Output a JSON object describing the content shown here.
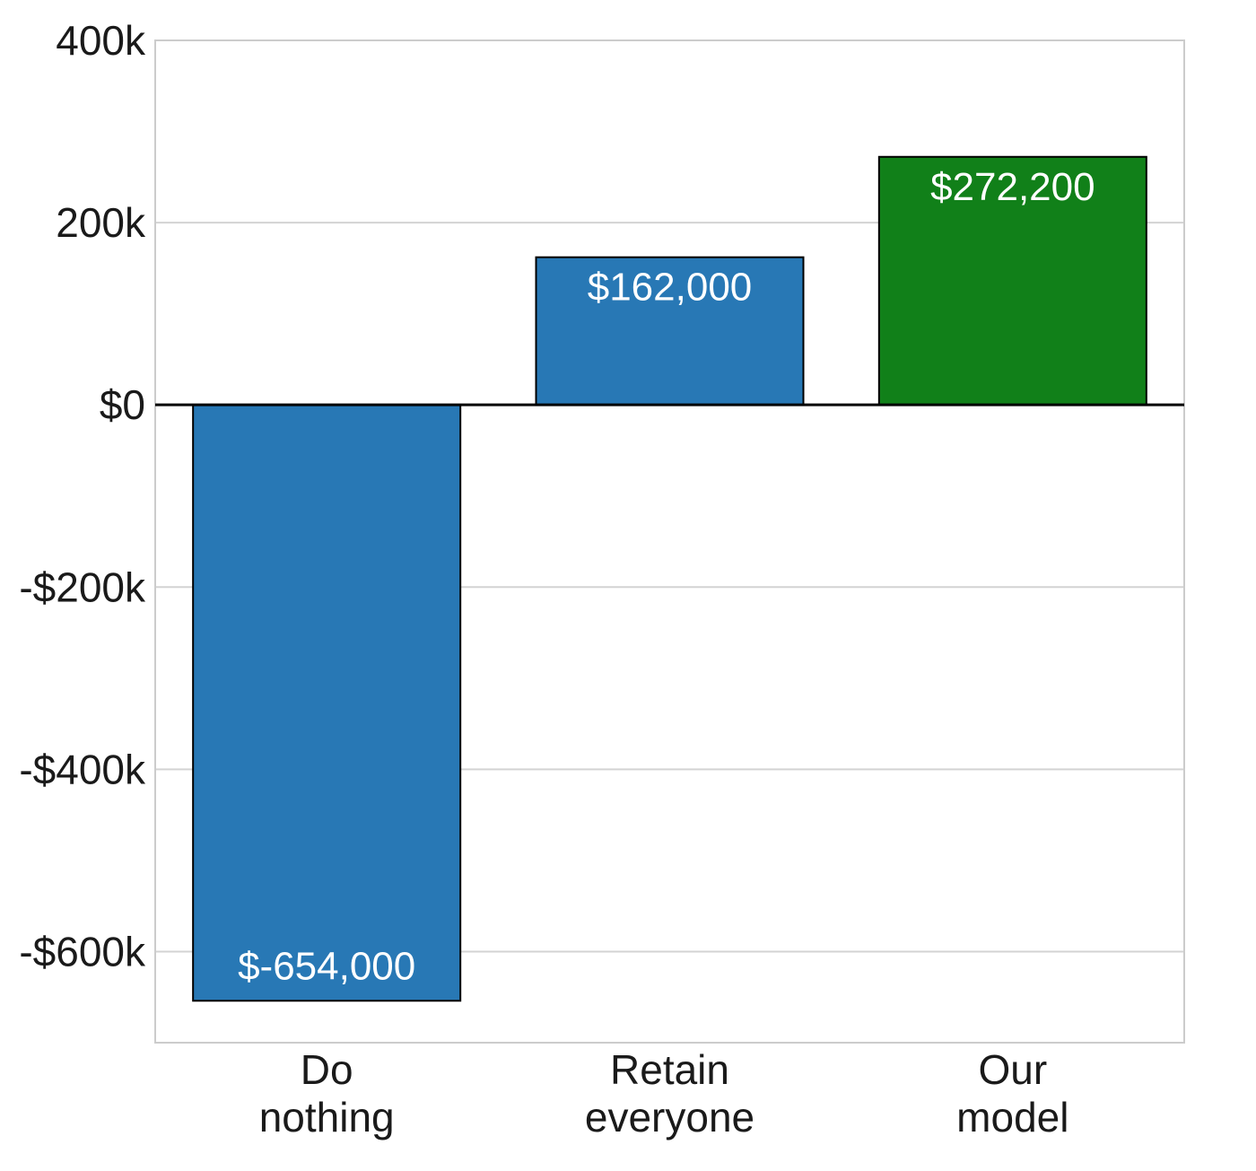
{
  "chart_data": {
    "type": "bar",
    "categories": [
      [
        "Do",
        "nothing"
      ],
      [
        "Retain",
        "everyone"
      ],
      [
        "Our",
        "model"
      ]
    ],
    "values": [
      -654000,
      162000,
      272200
    ],
    "value_labels": [
      "$-654,000",
      "$162,000",
      "$272,200"
    ],
    "bar_colors": [
      "#2878b5",
      "#2878b5",
      "#118019"
    ],
    "y_ticks": [
      {
        "value": 400000,
        "label": "400k"
      },
      {
        "value": 200000,
        "label": "200k"
      },
      {
        "value": 0,
        "label": "$0"
      },
      {
        "value": -200000,
        "label": "-$200k"
      },
      {
        "value": -400000,
        "label": "-$400k"
      },
      {
        "value": -600000,
        "label": "-$600k"
      }
    ],
    "ylim": [
      -700000,
      400000
    ],
    "title": "",
    "xlabel": "",
    "ylabel": "",
    "grid": true,
    "zero_line": true,
    "colors": {
      "grid": "#d3d3d3",
      "frame": "#cccccc",
      "zero_line": "#000000",
      "bar_edge": "#000000",
      "value_label": "#ffffff",
      "tick_label": "#1a1a1a"
    }
  }
}
